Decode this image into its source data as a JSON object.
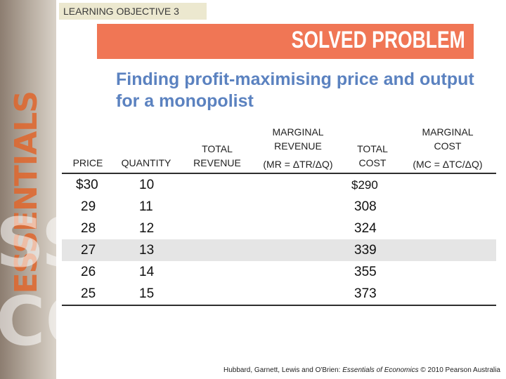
{
  "badge": "LEARNING OBJECTIVE 3",
  "banner": "SOLVED PROBLEM",
  "title": "Finding profit-maximising price and output for a monopolist",
  "headers": {
    "price": "PRICE",
    "quantity": "QUANTITY",
    "total_revenue_1": "TOTAL",
    "total_revenue_2": "REVENUE",
    "marginal_revenue_1": "MARGINAL",
    "marginal_revenue_2": "REVENUE",
    "marginal_revenue_3": "(MR = ΔTR/ΔQ)",
    "total_cost_1": "TOTAL",
    "total_cost_2": "COST",
    "marginal_cost_1": "MARGINAL",
    "marginal_cost_2": "COST",
    "marginal_cost_3": "(MC = ΔTC/ΔQ)"
  },
  "rows": [
    {
      "price": "$30",
      "quantity": "10",
      "total_cost": "$290"
    },
    {
      "price": "29",
      "quantity": "11",
      "total_cost": "308"
    },
    {
      "price": "28",
      "quantity": "12",
      "total_cost": "324"
    },
    {
      "price": "27",
      "quantity": "13",
      "total_cost": "339"
    },
    {
      "price": "26",
      "quantity": "14",
      "total_cost": "355"
    },
    {
      "price": "25",
      "quantity": "15",
      "total_cost": "373"
    }
  ],
  "footer": {
    "authors": "Hubbard, Garnett, Lewis and O'Brien: ",
    "book": "Essentials of Economics",
    "rest": " © 2010 Pearson Australia"
  }
}
